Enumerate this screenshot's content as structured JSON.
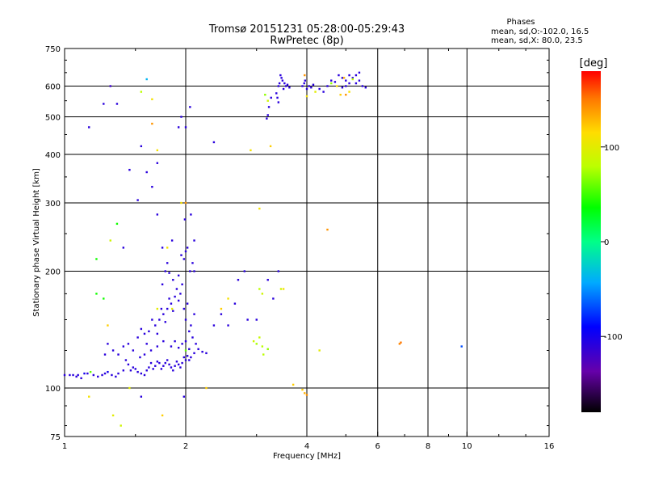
{
  "chart_data": {
    "type": "scatter",
    "title": "Tromsø 20151231 05:28:00-05:29:43",
    "subtitle": "RwPretec (8p)",
    "xlabel": "Frequency [MHz]",
    "ylabel": "Stationary phase Virtual Height [km]",
    "x_scale": "log",
    "y_scale": "log",
    "xlim": [
      1,
      16
    ],
    "ylim": [
      75,
      750
    ],
    "xticks": [
      1,
      2,
      4,
      6,
      8,
      10,
      16
    ],
    "xtick_labels": [
      "1",
      "2",
      "4",
      "6",
      "8",
      "10",
      "16"
    ],
    "yticks": [
      75,
      100,
      200,
      300,
      400,
      500,
      600,
      750
    ],
    "ytick_labels": [
      "75",
      "100",
      "200",
      "300",
      "400",
      "500",
      "600",
      "750"
    ],
    "grid": true,
    "stats_title": "Phases",
    "stats_lines": [
      "mean, sd,O:-102.0, 16.5",
      "mean, sd,X: 80.0, 23.5"
    ],
    "colorbar": {
      "label": "[deg]",
      "range": [
        -180,
        180
      ],
      "ticks": [
        100,
        0,
        -100
      ],
      "tick_labels": [
        "100",
        "0",
        "-100"
      ]
    },
    "points": [
      [
        1.0,
        108,
        -110
      ],
      [
        1.03,
        108,
        -110
      ],
      [
        1.05,
        108,
        -110
      ],
      [
        1.07,
        107,
        -110
      ],
      [
        1.08,
        108,
        -110
      ],
      [
        1.1,
        106,
        -110
      ],
      [
        1.12,
        109,
        -100
      ],
      [
        1.14,
        109,
        -110
      ],
      [
        1.16,
        110,
        60
      ],
      [
        1.18,
        108,
        -110
      ],
      [
        1.21,
        107,
        -110
      ],
      [
        1.24,
        108,
        -110
      ],
      [
        1.26,
        109,
        -110
      ],
      [
        1.28,
        110,
        -100
      ],
      [
        1.31,
        108,
        -110
      ],
      [
        1.34,
        107,
        -110
      ],
      [
        1.36,
        109,
        -110
      ],
      [
        1.4,
        111,
        -110
      ],
      [
        1.42,
        118,
        -110
      ],
      [
        1.44,
        115,
        -110
      ],
      [
        1.46,
        111,
        -110
      ],
      [
        1.48,
        113,
        -110
      ],
      [
        1.5,
        112,
        -110
      ],
      [
        1.52,
        110,
        -110
      ],
      [
        1.55,
        109,
        -110
      ],
      [
        1.58,
        108,
        -110
      ],
      [
        1.6,
        111,
        -110
      ],
      [
        1.62,
        113,
        -110
      ],
      [
        1.64,
        116,
        -110
      ],
      [
        1.66,
        112,
        -110
      ],
      [
        1.68,
        114,
        -110
      ],
      [
        1.7,
        117,
        -110
      ],
      [
        1.72,
        116,
        -110
      ],
      [
        1.74,
        112,
        -110
      ],
      [
        1.76,
        114,
        -110
      ],
      [
        1.78,
        116,
        -110
      ],
      [
        1.8,
        118,
        -110
      ],
      [
        1.82,
        115,
        -110
      ],
      [
        1.84,
        113,
        -110
      ],
      [
        1.86,
        111,
        -110
      ],
      [
        1.88,
        114,
        -110
      ],
      [
        1.9,
        117,
        -110
      ],
      [
        1.92,
        115,
        -110
      ],
      [
        1.94,
        113,
        -110
      ],
      [
        1.96,
        116,
        -110
      ],
      [
        1.98,
        120,
        -110
      ],
      [
        2.0,
        118,
        -110
      ],
      [
        2.02,
        121,
        -110
      ],
      [
        2.04,
        118,
        -110
      ],
      [
        2.06,
        120,
        -110
      ],
      [
        2.1,
        123,
        -110
      ],
      [
        2.15,
        126,
        -110
      ],
      [
        2.2,
        124,
        -110
      ],
      [
        2.25,
        123,
        -110
      ],
      [
        1.52,
        135,
        -110
      ],
      [
        1.55,
        142,
        -110
      ],
      [
        1.58,
        138,
        -110
      ],
      [
        1.6,
        130,
        -110
      ],
      [
        1.62,
        140,
        -110
      ],
      [
        1.65,
        150,
        -110
      ],
      [
        1.68,
        145,
        -110
      ],
      [
        1.7,
        138,
        -110
      ],
      [
        1.72,
        150,
        -110
      ],
      [
        1.74,
        160,
        -110
      ],
      [
        1.76,
        155,
        -110
      ],
      [
        1.78,
        148,
        -110
      ],
      [
        1.8,
        160,
        -110
      ],
      [
        1.82,
        170,
        -110
      ],
      [
        1.84,
        165,
        -110
      ],
      [
        1.86,
        158,
        -110
      ],
      [
        1.88,
        172,
        -110
      ],
      [
        1.9,
        180,
        -110
      ],
      [
        1.92,
        168,
        -110
      ],
      [
        1.94,
        175,
        -110
      ],
      [
        1.96,
        185,
        -110
      ],
      [
        1.98,
        160,
        -110
      ],
      [
        2.0,
        150,
        -110
      ],
      [
        2.02,
        165,
        -110
      ],
      [
        2.04,
        140,
        -110
      ],
      [
        2.06,
        145,
        -110
      ],
      [
        2.08,
        135,
        -110
      ],
      [
        2.1,
        155,
        -110
      ],
      [
        2.12,
        130,
        -110
      ],
      [
        1.84,
        128,
        -110
      ],
      [
        1.88,
        132,
        -110
      ],
      [
        1.92,
        127,
        -110
      ],
      [
        1.96,
        130,
        -110
      ],
      [
        2.0,
        132,
        -110
      ],
      [
        2.04,
        126,
        -110
      ],
      [
        1.76,
        132,
        -110
      ],
      [
        1.7,
        128,
        -110
      ],
      [
        1.64,
        125,
        -110
      ],
      [
        1.58,
        122,
        -110
      ],
      [
        1.54,
        120,
        -110
      ],
      [
        1.48,
        125,
        -110
      ],
      [
        1.44,
        130,
        -110
      ],
      [
        1.4,
        128,
        -110
      ],
      [
        1.36,
        122,
        -110
      ],
      [
        1.32,
        125,
        -110
      ],
      [
        1.28,
        130,
        -110
      ],
      [
        1.26,
        122,
        -110
      ],
      [
        1.75,
        185,
        -110
      ],
      [
        1.78,
        200,
        -110
      ],
      [
        1.8,
        210,
        -110
      ],
      [
        1.82,
        198,
        -110
      ],
      [
        1.86,
        190,
        -110
      ],
      [
        1.92,
        195,
        -110
      ],
      [
        1.98,
        215,
        -110
      ],
      [
        2.0,
        225,
        -110
      ],
      [
        2.02,
        230,
        -110
      ],
      [
        2.05,
        200,
        -110
      ],
      [
        2.08,
        210,
        -110
      ],
      [
        2.1,
        240,
        -110
      ],
      [
        2.06,
        280,
        -110
      ],
      [
        1.99,
        272,
        -110
      ],
      [
        3.4,
        600,
        -110
      ],
      [
        3.42,
        610,
        -110
      ],
      [
        3.44,
        640,
        -110
      ],
      [
        3.46,
        630,
        -110
      ],
      [
        3.48,
        620,
        -110
      ],
      [
        3.5,
        590,
        -110
      ],
      [
        3.52,
        610,
        -110
      ],
      [
        3.55,
        600,
        -110
      ],
      [
        3.58,
        605,
        -110
      ],
      [
        3.62,
        595,
        -110
      ],
      [
        3.38,
        560,
        -110
      ],
      [
        3.4,
        545,
        -110
      ],
      [
        3.36,
        575,
        -110
      ],
      [
        3.22,
        530,
        -110
      ],
      [
        3.26,
        560,
        -110
      ],
      [
        3.2,
        505,
        -110
      ],
      [
        3.18,
        495,
        -110
      ],
      [
        3.9,
        600,
        -110
      ],
      [
        3.94,
        610,
        -110
      ],
      [
        3.96,
        620,
        -110
      ],
      [
        4.0,
        590,
        -110
      ],
      [
        4.05,
        600,
        -110
      ],
      [
        4.1,
        595,
        -110
      ],
      [
        4.15,
        605,
        -110
      ],
      [
        4.3,
        590,
        -110
      ],
      [
        4.4,
        580,
        -110
      ],
      [
        4.5,
        600,
        -110
      ],
      [
        4.6,
        620,
        -110
      ],
      [
        4.7,
        615,
        -110
      ],
      [
        4.8,
        640,
        -110
      ],
      [
        4.9,
        630,
        -110
      ],
      [
        5.0,
        620,
        -110
      ],
      [
        5.1,
        640,
        -110
      ],
      [
        5.2,
        630,
        -110
      ],
      [
        5.3,
        610,
        -110
      ],
      [
        5.4,
        620,
        -110
      ],
      [
        5.5,
        600,
        -110
      ],
      [
        5.6,
        595,
        -110
      ],
      [
        5.3,
        640,
        -110
      ],
      [
        5.4,
        650,
        -110
      ],
      [
        5.0,
        600,
        -110
      ],
      [
        4.9,
        595,
        -110
      ],
      [
        5.1,
        610,
        -110
      ],
      [
        1.6,
        360,
        -110
      ],
      [
        1.65,
        330,
        -110
      ],
      [
        1.52,
        305,
        -110
      ],
      [
        1.45,
        365,
        -110
      ],
      [
        1.4,
        230,
        -110
      ],
      [
        1.7,
        280,
        -110
      ],
      [
        1.85,
        240,
        -110
      ],
      [
        1.75,
        230,
        -110
      ],
      [
        1.95,
        220,
        -110
      ],
      [
        2.1,
        200,
        -110
      ],
      [
        2.45,
        155,
        -110
      ],
      [
        2.35,
        145,
        -110
      ],
      [
        2.55,
        145,
        -110
      ],
      [
        2.7,
        190,
        -110
      ],
      [
        2.8,
        200,
        -110
      ],
      [
        2.65,
        165,
        -110
      ],
      [
        2.85,
        150,
        -110
      ],
      [
        3.0,
        150,
        -110
      ],
      [
        3.2,
        190,
        -110
      ],
      [
        3.3,
        170,
        -110
      ],
      [
        3.4,
        200,
        -110
      ],
      [
        1.35,
        540,
        -110
      ],
      [
        1.25,
        540,
        -110
      ],
      [
        1.15,
        470,
        -110
      ],
      [
        1.55,
        420,
        -110
      ],
      [
        1.7,
        380,
        -110
      ],
      [
        2.35,
        430,
        -110
      ],
      [
        1.95,
        500,
        -110
      ],
      [
        1.92,
        470,
        -110
      ],
      [
        2.0,
        470,
        -110
      ],
      [
        2.05,
        530,
        -110
      ],
      [
        1.98,
        95,
        -110
      ],
      [
        1.55,
        95,
        -110
      ],
      [
        3.9,
        99,
        120
      ],
      [
        3.95,
        97,
        130
      ],
      [
        4.0,
        96,
        140
      ],
      [
        3.7,
        102,
        120
      ],
      [
        4.5,
        256,
        140
      ],
      [
        6.8,
        130,
        145
      ],
      [
        6.85,
        131,
        150
      ],
      [
        9.7,
        128,
        -70
      ],
      [
        4.3,
        125,
        100
      ],
      [
        3.1,
        128,
        80
      ],
      [
        3.05,
        135,
        85
      ],
      [
        3.0,
        130,
        75
      ],
      [
        3.12,
        122,
        80
      ],
      [
        3.2,
        126,
        70
      ],
      [
        2.95,
        132,
        90
      ],
      [
        3.05,
        180,
        80
      ],
      [
        3.1,
        175,
        90
      ],
      [
        3.45,
        180,
        90
      ],
      [
        3.5,
        180,
        110
      ],
      [
        1.45,
        100,
        100
      ],
      [
        1.15,
        95,
        110
      ],
      [
        1.3,
        240,
        90
      ],
      [
        1.35,
        265,
        40
      ],
      [
        1.2,
        215,
        40
      ],
      [
        1.2,
        175,
        40
      ],
      [
        1.8,
        230,
        110
      ],
      [
        1.7,
        160,
        100
      ],
      [
        1.85,
        160,
        100
      ],
      [
        1.95,
        300,
        110
      ],
      [
        1.6,
        625,
        -40
      ],
      [
        1.3,
        600,
        -120
      ],
      [
        1.65,
        555,
        110
      ],
      [
        1.65,
        480,
        140
      ],
      [
        1.7,
        410,
        110
      ],
      [
        2.0,
        300,
        140
      ],
      [
        2.45,
        160,
        120
      ],
      [
        2.55,
        170,
        110
      ],
      [
        2.9,
        410,
        110
      ],
      [
        3.05,
        290,
        110
      ],
      [
        3.25,
        420,
        120
      ],
      [
        4.0,
        565,
        110
      ],
      [
        3.95,
        640,
        140
      ],
      [
        4.2,
        580,
        100
      ],
      [
        4.75,
        600,
        110
      ],
      [
        4.85,
        570,
        120
      ],
      [
        4.95,
        630,
        130
      ],
      [
        5.0,
        570,
        140
      ],
      [
        5.1,
        580,
        110
      ],
      [
        5.2,
        625,
        80
      ],
      [
        4.6,
        610,
        70
      ],
      [
        3.15,
        570,
        70
      ],
      [
        3.2,
        550,
        90
      ],
      [
        1.55,
        580,
        80
      ],
      [
        1.25,
        170,
        40
      ],
      [
        1.28,
        145,
        120
      ],
      [
        1.32,
        85,
        100
      ],
      [
        1.75,
        85,
        120
      ],
      [
        1.38,
        80,
        90
      ],
      [
        2.0,
        125,
        60
      ],
      [
        2.25,
        100,
        120
      ]
    ]
  }
}
